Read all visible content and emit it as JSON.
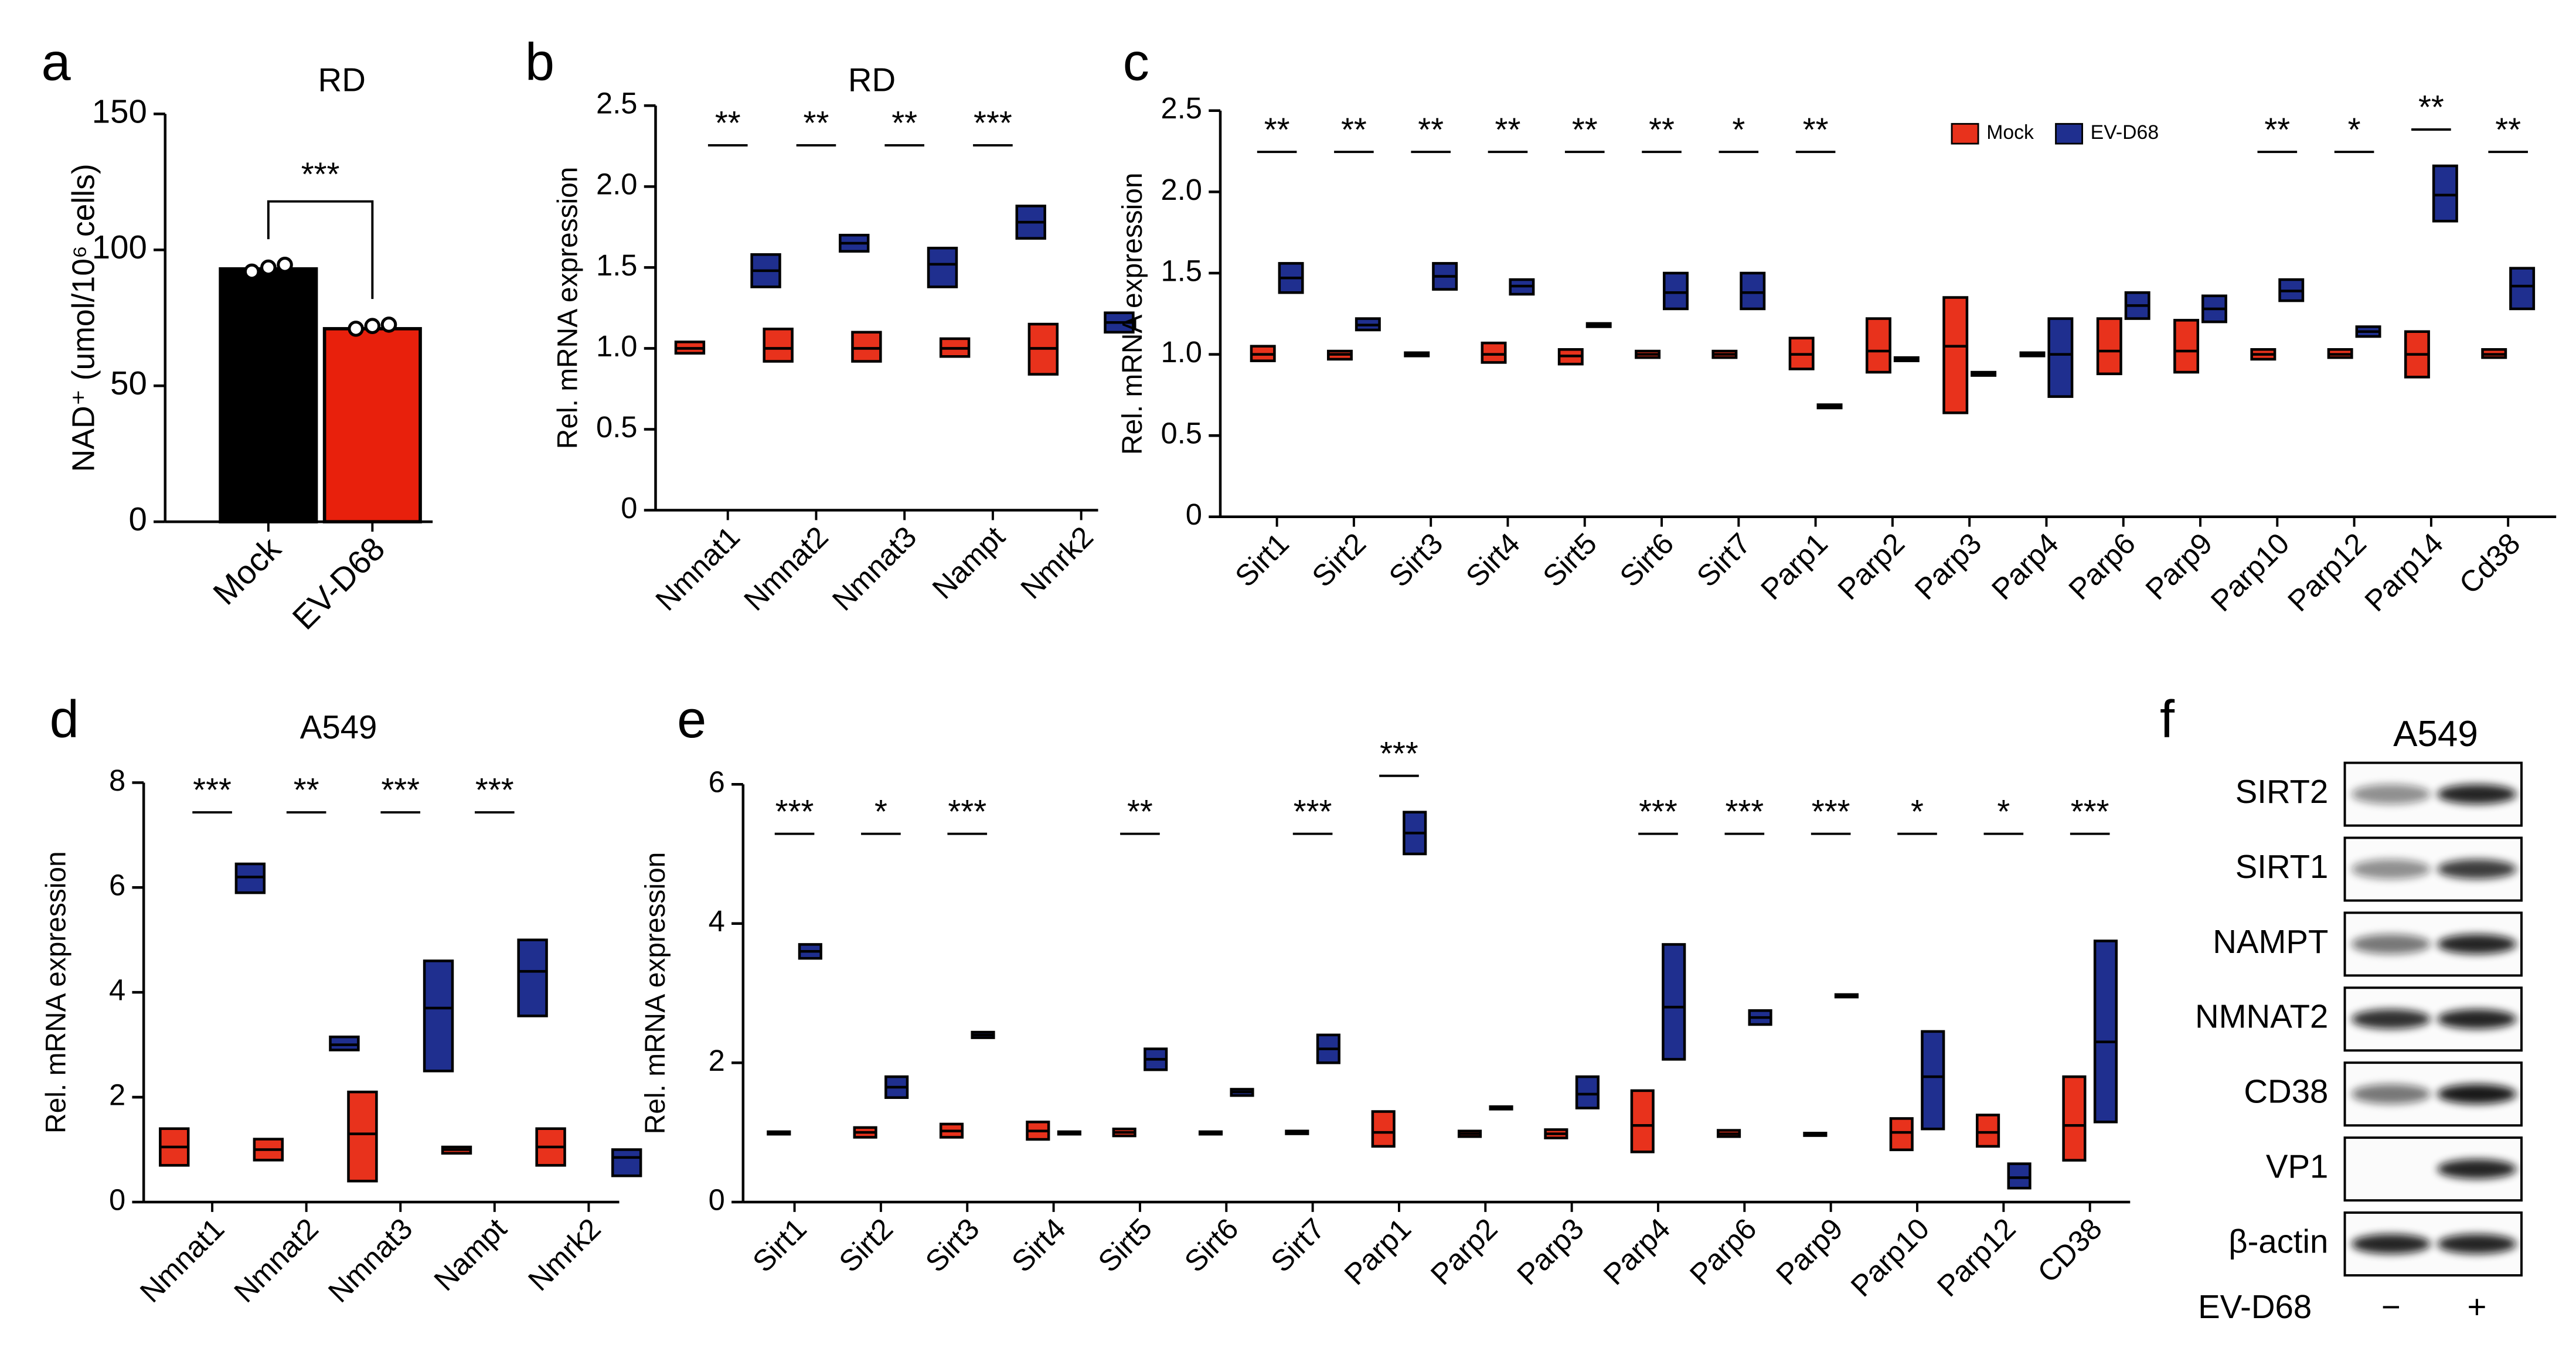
{
  "chart_data": [
    {
      "panel": "a",
      "type": "bar",
      "title": "RD",
      "y_label": "NAD⁺ (umol/10⁶ cells)",
      "categories": [
        "Mock",
        "EV-D68"
      ],
      "values": [
        93,
        71
      ],
      "colors": [
        "#000000",
        "#e8200c"
      ],
      "points": [
        [
          92,
          93.5,
          94.5
        ],
        [
          71,
          72,
          72.5
        ]
      ],
      "annotation": "***",
      "ylim": [
        0,
        150
      ],
      "yticks": [
        0,
        50,
        100,
        150
      ]
    },
    {
      "panel": "b",
      "type": "box",
      "title": "RD",
      "y_label": "Rel. mRNA expression",
      "legend": false,
      "categories": [
        "Nmnat1",
        "Nmnat2",
        "Nmnat3",
        "Nampt",
        "Nmrk2"
      ],
      "annotations": [
        "**",
        "**",
        "**",
        "***",
        null
      ],
      "series": [
        {
          "name": "Mock",
          "color": "#e8321c",
          "low": [
            0.97,
            0.92,
            0.92,
            0.95,
            0.84
          ],
          "values": [
            1.0,
            1.0,
            1.0,
            1.0,
            1.0
          ],
          "high": [
            1.04,
            1.12,
            1.1,
            1.06,
            1.15
          ]
        },
        {
          "name": "EV-D68",
          "color": "#1f2f8f",
          "low": [
            1.38,
            1.6,
            1.38,
            1.68,
            1.1
          ],
          "values": [
            1.48,
            1.65,
            1.52,
            1.78,
            1.16
          ],
          "high": [
            1.58,
            1.7,
            1.62,
            1.88,
            1.22
          ]
        }
      ],
      "ylim": [
        0,
        2.5
      ],
      "yticks": [
        0,
        0.5,
        {
          "value": 1,
          "label": "1.0"
        },
        1.5,
        {
          "value": 2,
          "label": "2.0"
        },
        2.5
      ]
    },
    {
      "panel": "c",
      "type": "box",
      "y_label": "Rel. mRNA expression",
      "legend": "top",
      "categories": [
        "Sirt1",
        "Sirt2",
        "Sirt3",
        "Sirt4",
        "Sirt5",
        "Sirt6",
        "Sirt7",
        "Parp1",
        "Parp2",
        "Parp3",
        "Parp4",
        "Parp6",
        "Parp9",
        "Parp10",
        "Parp12",
        "Parp14",
        "Cd38"
      ],
      "annotations": [
        "**",
        "**",
        "**",
        "**",
        "**",
        "**",
        "*",
        "**",
        null,
        null,
        null,
        null,
        null,
        "**",
        "*",
        "**",
        "**"
      ],
      "series": [
        {
          "name": "Mock",
          "color": "#e8321c",
          "low": [
            0.96,
            0.97,
            0.99,
            0.95,
            0.94,
            0.98,
            0.98,
            0.91,
            0.89,
            0.64,
            0.99,
            0.88,
            0.89,
            0.97,
            0.98,
            0.86,
            0.98
          ],
          "values": [
            1.0,
            1.0,
            1.0,
            1.0,
            0.99,
            1.0,
            1.0,
            1.0,
            1.02,
            1.05,
            1.0,
            1.02,
            1.02,
            1.0,
            1.0,
            1.0,
            1.0
          ],
          "high": [
            1.05,
            1.02,
            1.01,
            1.07,
            1.03,
            1.02,
            1.02,
            1.1,
            1.22,
            1.35,
            1.01,
            1.22,
            1.21,
            1.03,
            1.03,
            1.14,
            1.03
          ]
        },
        {
          "name": "EV-D68",
          "color": "#1f2f8f",
          "low": [
            1.38,
            1.15,
            1.4,
            1.37,
            1.17,
            1.28,
            1.28,
            0.67,
            0.96,
            0.87,
            0.74,
            1.22,
            1.2,
            1.33,
            1.11,
            1.82,
            1.28
          ],
          "values": [
            1.47,
            1.18,
            1.48,
            1.42,
            1.18,
            1.38,
            1.38,
            0.68,
            0.97,
            0.88,
            1.0,
            1.3,
            1.28,
            1.39,
            1.14,
            1.98,
            1.42
          ],
          "high": [
            1.56,
            1.22,
            1.56,
            1.46,
            1.19,
            1.5,
            1.5,
            0.69,
            0.98,
            0.89,
            1.22,
            1.38,
            1.36,
            1.46,
            1.17,
            2.16,
            1.53
          ]
        }
      ],
      "ylim": [
        0,
        2.5
      ],
      "yticks": [
        0,
        0.5,
        {
          "value": 1,
          "label": "1.0"
        },
        1.5,
        {
          "value": 2,
          "label": "2.0"
        },
        2.5
      ]
    },
    {
      "panel": "d",
      "type": "box",
      "title": "A549",
      "y_label": "Rel. mRNA expression",
      "legend": false,
      "categories": [
        "Nmnat1",
        "Nmnat2",
        "Nmnat3",
        "Nampt",
        "Nmrk2"
      ],
      "annotations": [
        "***",
        "**",
        "***",
        "***",
        null
      ],
      "series": [
        {
          "name": "Mock",
          "color": "#e8321c",
          "low": [
            0.7,
            0.8,
            0.4,
            0.93,
            0.7
          ],
          "values": [
            1.05,
            1.0,
            1.3,
            1.0,
            1.05
          ],
          "high": [
            1.4,
            1.2,
            2.1,
            1.05,
            1.4
          ]
        },
        {
          "name": "EV-D68",
          "color": "#1f2f8f",
          "low": [
            5.9,
            2.9,
            2.5,
            3.55,
            0.5
          ],
          "values": [
            6.2,
            3.0,
            3.7,
            4.4,
            0.85
          ],
          "high": [
            6.45,
            3.15,
            4.6,
            5.0,
            1.0
          ]
        }
      ],
      "ylim": [
        0,
        8
      ],
      "yticks": [
        0,
        2,
        4,
        6,
        8
      ]
    },
    {
      "panel": "e",
      "type": "box",
      "y_label": "Rel. mRNA expression",
      "legend": false,
      "categories": [
        "Sirt1",
        "Sirt2",
        "Sirt3",
        "Sirt4",
        "Sirt5",
        "Sirt6",
        "Sirt7",
        "Parp1",
        "Parp2",
        "Parp3",
        "Parp4",
        "Parp6",
        "Parp9",
        "Parp10",
        "Parp12",
        "CD38"
      ],
      "annotations": [
        "***",
        "*",
        "***",
        null,
        "**",
        null,
        "***",
        "***",
        null,
        null,
        "***",
        "***",
        "***",
        "*",
        "*",
        "***"
      ],
      "series": [
        {
          "name": "Mock",
          "color": "#e8321c",
          "low": [
            0.99,
            0.93,
            0.93,
            0.9,
            0.95,
            0.99,
            0.98,
            0.8,
            0.94,
            0.92,
            0.72,
            0.94,
            0.97,
            0.75,
            0.8,
            0.6
          ],
          "values": [
            1.0,
            1.0,
            1.02,
            1.02,
            1.0,
            1.0,
            1.0,
            1.0,
            0.98,
            0.98,
            1.1,
            0.98,
            0.98,
            1.0,
            1.0,
            1.1
          ],
          "high": [
            1.01,
            1.07,
            1.12,
            1.15,
            1.05,
            1.01,
            1.02,
            1.3,
            1.02,
            1.04,
            1.6,
            1.03,
            0.99,
            1.2,
            1.25,
            1.8
          ]
        },
        {
          "name": "EV-D68",
          "color": "#1f2f8f",
          "low": [
            3.5,
            1.5,
            2.36,
            0.99,
            1.9,
            1.53,
            2.0,
            5.0,
            1.35,
            1.35,
            2.05,
            2.55,
            2.96,
            1.05,
            0.2,
            1.15
          ],
          "values": [
            3.6,
            1.65,
            2.4,
            1.0,
            2.05,
            1.58,
            2.2,
            5.3,
            1.36,
            1.55,
            2.8,
            2.65,
            2.97,
            1.8,
            0.35,
            2.3
          ],
          "high": [
            3.7,
            1.8,
            2.44,
            1.01,
            2.2,
            1.62,
            2.4,
            5.6,
            1.37,
            1.8,
            3.7,
            2.75,
            2.98,
            2.45,
            0.55,
            3.75
          ]
        }
      ],
      "ylim": [
        0,
        6
      ],
      "yticks": [
        0,
        2,
        4,
        6
      ]
    },
    {
      "panel": "f",
      "type": "blot",
      "title": "A549",
      "rows": [
        "SIRT2",
        "SIRT1",
        "NAMPT",
        "NMNAT2",
        "CD38",
        "VP1",
        "β-actin"
      ],
      "x_label": "EV-D68",
      "lanes": [
        "−",
        "+"
      ]
    }
  ]
}
